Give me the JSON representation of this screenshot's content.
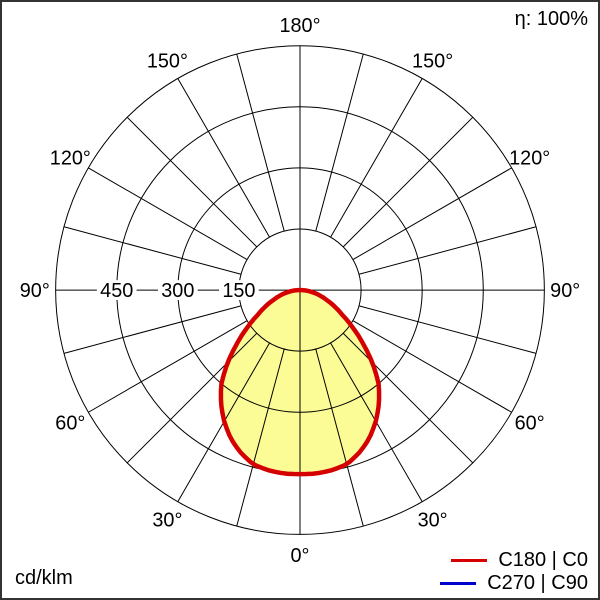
{
  "header": {
    "efficiency_label": "η: 100%"
  },
  "footer": {
    "unit_label": "cd/klm"
  },
  "legend": {
    "items": [
      {
        "label": "C180 | C0",
        "color": "#d50000"
      },
      {
        "label": "C270 | C90",
        "color": "#0000cd"
      }
    ]
  },
  "chart_data": {
    "type": "polar",
    "description": "Photometric luminous intensity distribution curve, 0° at bottom, 180° at top, values in cd/klm",
    "radial_unit": "cd/klm",
    "ring_values": [
      150,
      300,
      450
    ],
    "outer_ring_value": 600,
    "spoke_step_deg": 15,
    "angle_label_step_deg": 30,
    "angle_labels": [
      "0°",
      "30°",
      "60°",
      "90°",
      "120°",
      "150°",
      "180°"
    ],
    "grid_color": "#000000",
    "series": [
      {
        "name": "C180 | C0",
        "color": "#d50000",
        "fill_color": "#fcfc96",
        "symmetric": true,
        "gamma_deg": [
          0,
          5,
          10,
          15,
          20,
          25,
          30,
          35,
          40,
          45,
          50,
          55,
          60,
          65,
          70,
          75,
          80,
          85,
          90
        ],
        "values_cd_per_klm": [
          452,
          452,
          449,
          443,
          425,
          402,
          372,
          338,
          300,
          250,
          200,
          155,
          118,
          92,
          68,
          50,
          32,
          15,
          0
        ]
      },
      {
        "name": "C270 | C90",
        "color": "#0000cd",
        "curve_hidden_behind": "C180 | C0"
      }
    ]
  }
}
